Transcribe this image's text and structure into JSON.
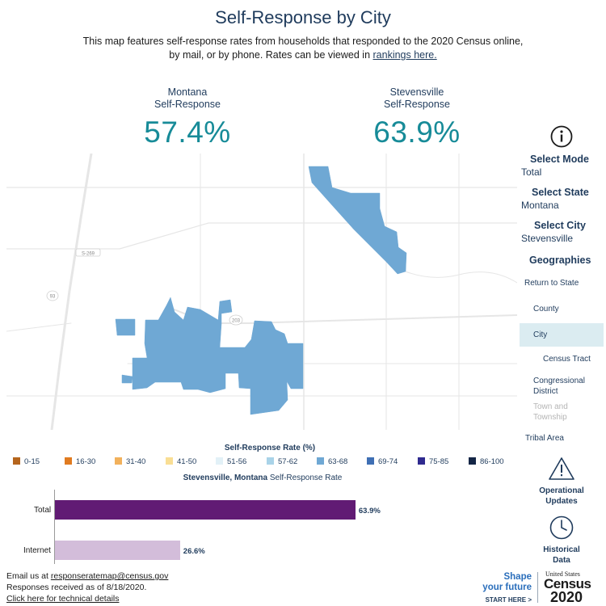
{
  "header": {
    "title": "Self-Response by City",
    "subtitle_text": "This map features self-response rates from households that responded to the 2020 Census online, by mail, or by phone. Rates can be viewed in",
    "rankings_link": "rankings here."
  },
  "kpis": {
    "state": {
      "label_line1": "Montana",
      "label_line2": "Self-Response",
      "value": "57.4%"
    },
    "city": {
      "label_line1": "Stevensville",
      "label_line2": "Self-Response",
      "value": "63.9%"
    }
  },
  "map": {
    "road_labels": {
      "s269": "S-269",
      "r93": "93",
      "r203": "203"
    },
    "fill_color": "#6fa8d4",
    "road_color": "#e6e6e6"
  },
  "legend": {
    "title": "Self-Response Rate (%)",
    "items": [
      {
        "label": "0-15",
        "color": "#b5651d"
      },
      {
        "label": "16-30",
        "color": "#e07b20"
      },
      {
        "label": "31-40",
        "color": "#f2b15c"
      },
      {
        "label": "41-50",
        "color": "#f9de94"
      },
      {
        "label": "51-56",
        "color": "#e2f1f7"
      },
      {
        "label": "57-62",
        "color": "#a9d3e8"
      },
      {
        "label": "63-68",
        "color": "#6fa8d4"
      },
      {
        "label": "69-74",
        "color": "#3f6fb4"
      },
      {
        "label": "75-85",
        "color": "#2f2a8f"
      },
      {
        "label": "86-100",
        "color": "#142646"
      }
    ]
  },
  "rate_chart": {
    "title_bold": "Stevensville, Montana",
    "title_rest": "Self-Response Rate",
    "bars": [
      {
        "label": "Total",
        "value": "63.9%",
        "pct": 63.9,
        "color": "#611b74"
      },
      {
        "label": "Internet",
        "value": "26.6%",
        "pct": 26.6,
        "color": "#d3bdda"
      }
    ]
  },
  "controls": {
    "select_mode": {
      "label": "Select Mode",
      "value": "Total"
    },
    "select_state": {
      "label": "Select State",
      "value": "Montana"
    },
    "select_city": {
      "label": "Select City",
      "value": "Stevensville"
    },
    "geographies": {
      "label": "Geographies",
      "items": {
        "return_to_state": "Return to State",
        "county": "County",
        "city": "City",
        "census_tract": "Census Tract",
        "congressional_line1": "Congressional",
        "congressional_line2": "District",
        "town_line1": "Town and",
        "town_line2": "Township",
        "tribal_area": "Tribal Area"
      },
      "selected": "City"
    },
    "operational_line1": "Operational",
    "operational_line2": "Updates",
    "historical_line1": "Historical",
    "historical_line2": "Data"
  },
  "footer": {
    "email_prefix": "Email us at",
    "email": "responseratemap@census.gov",
    "received": "Responses received as of 8/18/2020.",
    "tech_link": "Click here for technical details"
  },
  "brand": {
    "shape_line1": "Shape",
    "shape_line2": "your future",
    "start_here": "START HERE >",
    "united_states": "United States",
    "census": "Census",
    "year": "2020"
  }
}
